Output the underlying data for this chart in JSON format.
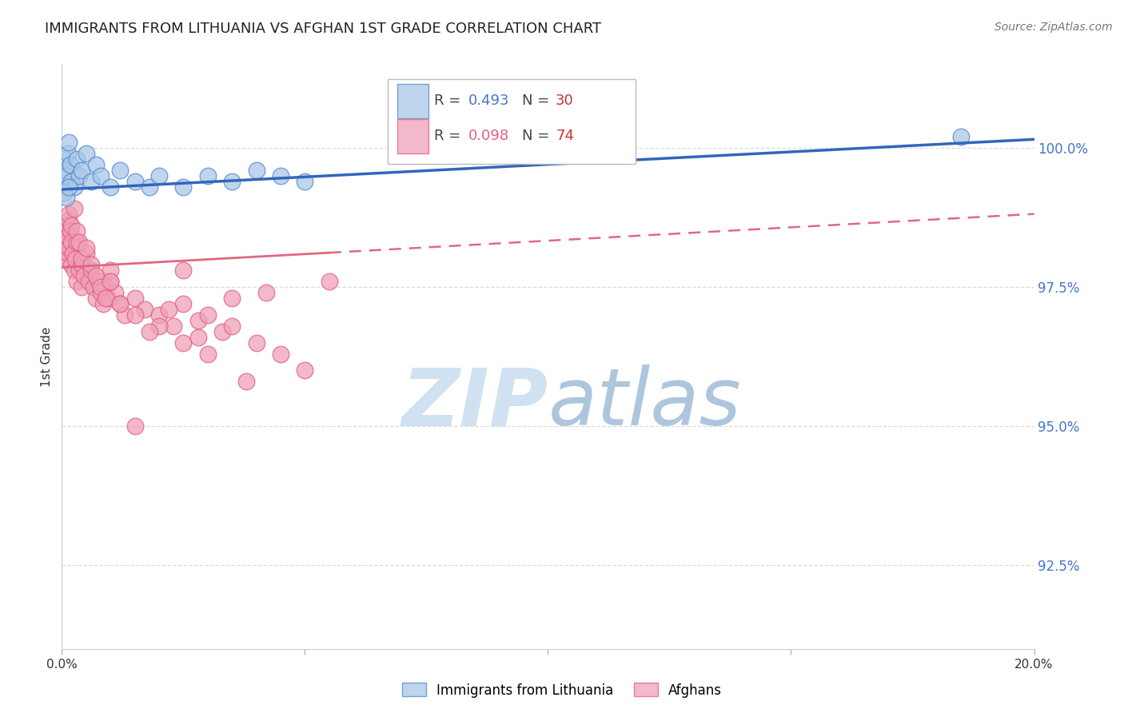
{
  "title": "IMMIGRANTS FROM LITHUANIA VS AFGHAN 1ST GRADE CORRELATION CHART",
  "source": "Source: ZipAtlas.com",
  "ylabel": "1st Grade",
  "right_yticks": [
    100.0,
    97.5,
    95.0,
    92.5
  ],
  "right_yticklabels": [
    "100.0%",
    "97.5%",
    "95.0%",
    "92.5%"
  ],
  "xlim": [
    0.0,
    20.0
  ],
  "ylim": [
    91.0,
    101.5
  ],
  "legend_r1": "0.493",
  "legend_n1": "30",
  "legend_r2": "0.098",
  "legend_n2": "74",
  "blue_color": "#a8c8e8",
  "pink_color": "#f0a0b8",
  "blue_edge_color": "#5588cc",
  "pink_edge_color": "#e06080",
  "blue_line_color": "#3366bb",
  "pink_line_color": "#e06880",
  "grid_color": "#dddddd",
  "watermark_color": "#ddeeff",
  "blue_line_intercept": 99.25,
  "blue_line_slope": 0.045,
  "pink_line_intercept": 97.85,
  "pink_line_slope": 0.048,
  "pink_solid_end": 5.5,
  "blue_scatter_x": [
    0.05,
    0.08,
    0.1,
    0.12,
    0.15,
    0.18,
    0.2,
    0.25,
    0.3,
    0.35,
    0.4,
    0.5,
    0.6,
    0.7,
    0.8,
    1.0,
    1.2,
    1.5,
    1.8,
    2.0,
    2.5,
    3.0,
    3.5,
    4.0,
    4.5,
    5.0,
    0.05,
    0.1,
    0.15,
    18.5
  ],
  "blue_scatter_y": [
    99.8,
    99.6,
    99.5,
    99.9,
    100.1,
    99.7,
    99.4,
    99.3,
    99.8,
    99.5,
    99.6,
    99.9,
    99.4,
    99.7,
    99.5,
    99.3,
    99.6,
    99.4,
    99.3,
    99.5,
    99.3,
    99.5,
    99.4,
    99.6,
    99.5,
    99.4,
    99.2,
    99.1,
    99.3,
    100.2
  ],
  "pink_scatter_x": [
    0.05,
    0.07,
    0.08,
    0.1,
    0.1,
    0.12,
    0.13,
    0.15,
    0.15,
    0.18,
    0.2,
    0.2,
    0.22,
    0.25,
    0.28,
    0.3,
    0.3,
    0.35,
    0.4,
    0.4,
    0.45,
    0.5,
    0.55,
    0.6,
    0.65,
    0.7,
    0.75,
    0.8,
    0.85,
    0.9,
    0.95,
    1.0,
    1.0,
    1.1,
    1.2,
    1.3,
    1.5,
    1.7,
    2.0,
    2.3,
    2.5,
    2.8,
    3.0,
    3.3,
    3.5,
    4.0,
    4.5,
    5.0,
    5.5,
    0.15,
    0.2,
    0.25,
    0.3,
    0.35,
    0.4,
    0.5,
    0.6,
    0.7,
    0.8,
    0.9,
    1.0,
    1.2,
    1.5,
    2.0,
    2.5,
    3.0,
    3.5,
    1.8,
    2.2,
    2.8,
    3.8,
    4.2,
    1.5,
    2.5
  ],
  "pink_scatter_y": [
    98.2,
    98.5,
    98.3,
    98.6,
    98.0,
    98.4,
    98.1,
    98.7,
    98.2,
    98.5,
    98.3,
    97.9,
    98.1,
    97.8,
    98.0,
    97.6,
    98.3,
    97.8,
    97.9,
    97.5,
    97.7,
    98.1,
    97.6,
    97.8,
    97.5,
    97.3,
    97.6,
    97.4,
    97.2,
    97.5,
    97.3,
    97.6,
    97.8,
    97.4,
    97.2,
    97.0,
    97.3,
    97.1,
    97.0,
    96.8,
    97.2,
    96.9,
    97.0,
    96.7,
    96.8,
    96.5,
    96.3,
    96.0,
    97.6,
    98.8,
    98.6,
    98.9,
    98.5,
    98.3,
    98.0,
    98.2,
    97.9,
    97.7,
    97.5,
    97.3,
    97.6,
    97.2,
    97.0,
    96.8,
    96.5,
    96.3,
    97.3,
    96.7,
    97.1,
    96.6,
    95.8,
    97.4,
    95.0,
    97.8
  ]
}
